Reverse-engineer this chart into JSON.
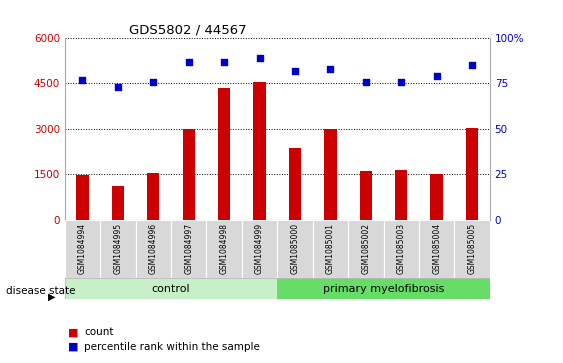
{
  "title": "GDS5802 / 44567",
  "samples": [
    "GSM1084994",
    "GSM1084995",
    "GSM1084996",
    "GSM1084997",
    "GSM1084998",
    "GSM1084999",
    "GSM1085000",
    "GSM1085001",
    "GSM1085002",
    "GSM1085003",
    "GSM1085004",
    "GSM1085005"
  ],
  "counts": [
    1480,
    1100,
    1530,
    3000,
    4350,
    4540,
    2370,
    2980,
    1600,
    1630,
    1520,
    3020
  ],
  "percentiles": [
    77,
    73,
    76,
    87,
    87,
    89,
    82,
    83,
    76,
    76,
    79,
    85
  ],
  "group_labels": [
    "control",
    "primary myelofibrosis"
  ],
  "group_control_count": 6,
  "bar_color": "#cc0000",
  "dot_color": "#0000cc",
  "control_bg": "#c8f0c8",
  "myelofibrosis_bg": "#66dd66",
  "ylim_left": [
    0,
    6000
  ],
  "ylim_right": [
    0,
    100
  ],
  "yticks_left": [
    0,
    1500,
    3000,
    4500,
    6000
  ],
  "yticks_right": [
    0,
    25,
    50,
    75,
    100
  ],
  "disease_state_label": "disease state",
  "legend_count_label": "count",
  "legend_percentile_label": "percentile rank within the sample",
  "background_color": "#ffffff",
  "plot_bg_color": "#ffffff"
}
